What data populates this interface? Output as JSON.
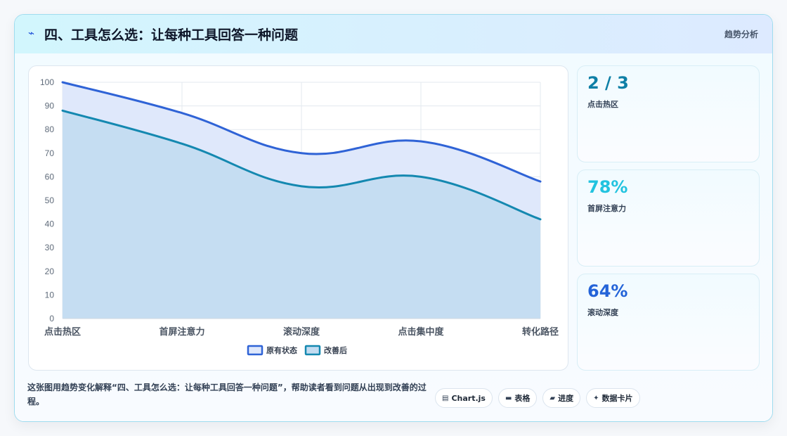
{
  "header": {
    "icon": "line-chart-icon",
    "title": "四、工具怎么选：让每种工具回答一种问题",
    "tag": "趋势分析"
  },
  "chart_data": {
    "type": "area",
    "categories": [
      "点击热区",
      "首屏注意力",
      "滚动深度",
      "点击集中度",
      "转化路径"
    ],
    "series": [
      {
        "name": "原有状态",
        "values": [
          100,
          87,
          70,
          75,
          58
        ],
        "color": "#2f63d6",
        "fill": "#dfe8fb"
      },
      {
        "name": "改善后",
        "values": [
          88,
          74,
          56,
          60,
          42
        ],
        "color": "#1488b0",
        "fill": "#c3dcf1"
      }
    ],
    "ylim": [
      0,
      100
    ],
    "yticks": [
      0,
      10,
      20,
      30,
      40,
      50,
      60,
      70,
      80,
      90,
      100
    ],
    "grid": true,
    "legend": "bottom"
  },
  "stats": [
    {
      "value": "2 / 3",
      "label": "点击热区",
      "color": "#0e7fa6"
    },
    {
      "value": "78%",
      "label": "首屏注意力",
      "color": "#22c3df"
    },
    {
      "value": "64%",
      "label": "滚动深度",
      "color": "#2463d8"
    }
  ],
  "caption": "这张图用趋势变化解释“四、工具怎么选：让每种工具回答一种问题”，帮助读者看到问题从出现到改善的过程。",
  "chips": [
    {
      "icon": "chart-icon",
      "glyph": "▤",
      "label": "Chart.js"
    },
    {
      "icon": "table-icon",
      "glyph": "▬",
      "label": "表格"
    },
    {
      "icon": "progress-icon",
      "glyph": "▰",
      "label": "进度"
    },
    {
      "icon": "sparkle-icon",
      "glyph": "✦",
      "label": "数据卡片"
    }
  ]
}
